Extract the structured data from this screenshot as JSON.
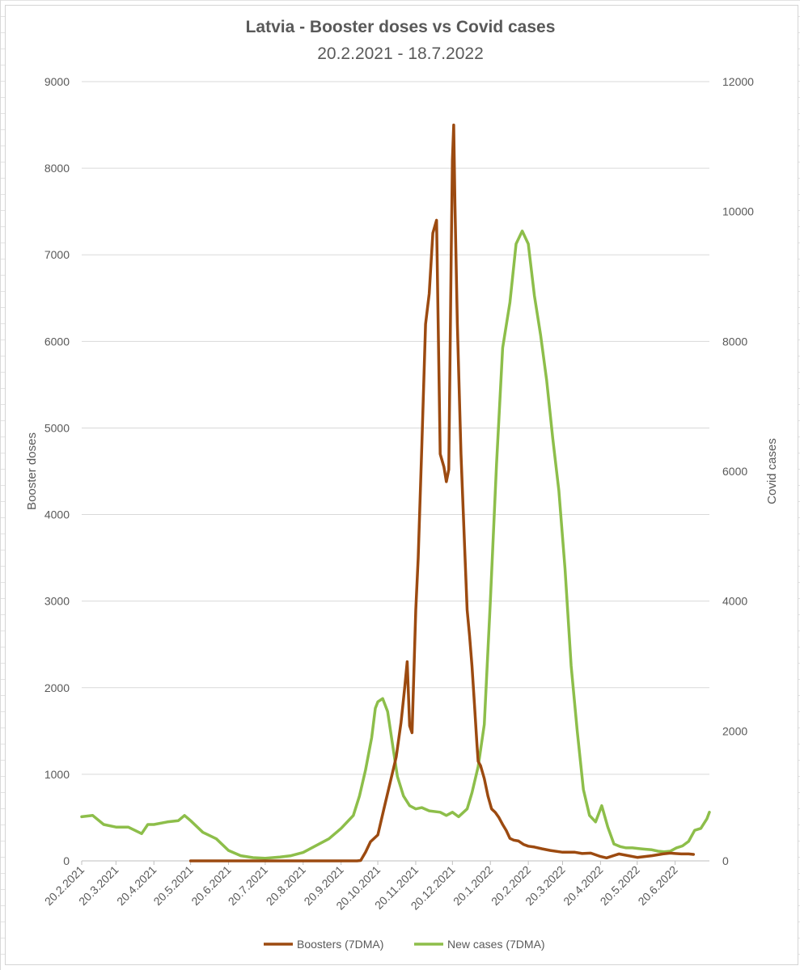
{
  "chart_data": {
    "type": "line",
    "title": "Latvia - Booster doses vs Covid cases",
    "subtitle": "20.2.2021 - 18.7.2022",
    "y_left_label": "Booster doses",
    "y_right_label": "Covid cases",
    "y_left_range": [
      0,
      9000
    ],
    "y_right_range": [
      0,
      12000
    ],
    "y_left_ticks": [
      "0",
      "1000",
      "2000",
      "3000",
      "4000",
      "5000",
      "6000",
      "7000",
      "8000",
      "9000"
    ],
    "y_right_ticks": [
      "0",
      "2000",
      "4000",
      "6000",
      "8000",
      "10000",
      "12000"
    ],
    "x_ticks": [
      "20.2.2021",
      "20.3.2021",
      "20.4.2021",
      "20.5.2021",
      "20.6.2021",
      "20.7.2021",
      "20.8.2021",
      "20.9.2021",
      "20.10.2021",
      "20.11.2021",
      "20.12.2021",
      "20.1.2022",
      "20.2.2022",
      "20.3.2022",
      "20.4.2022",
      "20.5.2022",
      "20.6.2022"
    ],
    "grid": true,
    "legend_position": "bottom",
    "series": [
      {
        "name": "Boosters (7DMA)",
        "axis": "left",
        "color": "#9C4A10",
        "x": [
          "2021-05-20",
          "2021-06-20",
          "2021-07-20",
          "2021-08-20",
          "2021-09-20",
          "2021-10-03",
          "2021-10-06",
          "2021-10-10",
          "2021-10-14",
          "2021-10-20",
          "2021-10-25",
          "2021-10-30",
          "2021-11-04",
          "2021-11-08",
          "2021-11-11",
          "2021-11-13",
          "2021-11-15",
          "2021-11-17",
          "2021-11-20",
          "2021-11-22",
          "2021-11-25",
          "2021-11-28",
          "2021-12-01",
          "2021-12-04",
          "2021-12-07",
          "2021-12-10",
          "2021-12-13",
          "2021-12-15",
          "2021-12-17",
          "2021-12-19",
          "2021-12-20",
          "2021-12-21",
          "2021-12-22",
          "2021-12-24",
          "2021-12-27",
          "2021-12-30",
          "2022-01-01",
          "2022-01-03",
          "2022-01-05",
          "2022-01-07",
          "2022-01-09",
          "2022-01-10",
          "2022-01-12",
          "2022-01-15",
          "2022-01-18",
          "2022-01-21",
          "2022-01-24",
          "2022-01-27",
          "2022-01-30",
          "2022-02-02",
          "2022-02-05",
          "2022-02-08",
          "2022-02-12",
          "2022-02-16",
          "2022-02-20",
          "2022-02-25",
          "2022-03-03",
          "2022-03-10",
          "2022-03-20",
          "2022-03-30",
          "2022-04-05",
          "2022-04-12",
          "2022-04-20",
          "2022-04-25",
          "2022-05-05",
          "2022-05-20",
          "2022-06-01",
          "2022-06-10",
          "2022-06-16",
          "2022-06-20",
          "2022-06-25",
          "2022-07-01",
          "2022-07-05"
        ],
        "y": [
          0,
          0,
          0,
          0,
          0,
          0,
          5,
          100,
          220,
          300,
          600,
          900,
          1200,
          1600,
          2000,
          2300,
          1560,
          1480,
          2900,
          3500,
          4800,
          6200,
          6550,
          7250,
          7400,
          4700,
          4550,
          4380,
          4520,
          7000,
          8100,
          8500,
          7600,
          6200,
          4700,
          3600,
          2900,
          2600,
          2250,
          1800,
          1350,
          1150,
          1100,
          950,
          750,
          600,
          560,
          500,
          420,
          350,
          260,
          240,
          230,
          190,
          170,
          160,
          140,
          120,
          100,
          100,
          85,
          90,
          50,
          35,
          80,
          40,
          60,
          80,
          90,
          85,
          80,
          80,
          75
        ]
      },
      {
        "name": "New cases (7DMA)",
        "axis": "right",
        "color": "#8DBE4A",
        "x": [
          "2021-02-20",
          "2021-03-01",
          "2021-03-10",
          "2021-03-20",
          "2021-03-30",
          "2021-04-10",
          "2021-04-15",
          "2021-04-20",
          "2021-05-01",
          "2021-05-10",
          "2021-05-15",
          "2021-05-20",
          "2021-05-30",
          "2021-06-10",
          "2021-06-20",
          "2021-06-30",
          "2021-07-10",
          "2021-07-20",
          "2021-08-01",
          "2021-08-10",
          "2021-08-20",
          "2021-09-01",
          "2021-09-10",
          "2021-09-20",
          "2021-09-30",
          "2021-10-05",
          "2021-10-10",
          "2021-10-15",
          "2021-10-18",
          "2021-10-20",
          "2021-10-24",
          "2021-10-28",
          "2021-11-01",
          "2021-11-05",
          "2021-11-10",
          "2021-11-15",
          "2021-11-20",
          "2021-11-25",
          "2021-12-01",
          "2021-12-10",
          "2021-12-15",
          "2021-12-20",
          "2021-12-25",
          "2022-01-01",
          "2022-01-05",
          "2022-01-10",
          "2022-01-15",
          "2022-01-20",
          "2022-01-25",
          "2022-01-30",
          "2022-02-05",
          "2022-02-10",
          "2022-02-15",
          "2022-02-20",
          "2022-02-25",
          "2022-03-02",
          "2022-03-07",
          "2022-03-12",
          "2022-03-17",
          "2022-03-22",
          "2022-03-27",
          "2022-04-01",
          "2022-04-06",
          "2022-04-11",
          "2022-04-16",
          "2022-04-21",
          "2022-04-26",
          "2022-05-01",
          "2022-05-06",
          "2022-05-11",
          "2022-05-16",
          "2022-05-21",
          "2022-05-26",
          "2022-06-01",
          "2022-06-06",
          "2022-06-11",
          "2022-06-16",
          "2022-06-21",
          "2022-06-26",
          "2022-07-01",
          "2022-07-06",
          "2022-07-11",
          "2022-07-16",
          "2022-07-18"
        ],
        "y": [
          680,
          700,
          560,
          520,
          520,
          420,
          560,
          560,
          600,
          620,
          700,
          620,
          440,
          340,
          160,
          80,
          50,
          40,
          60,
          80,
          130,
          250,
          340,
          500,
          700,
          1000,
          1400,
          1900,
          2350,
          2450,
          2500,
          2300,
          1800,
          1300,
          1000,
          850,
          800,
          820,
          770,
          750,
          700,
          750,
          680,
          800,
          1050,
          1450,
          2100,
          4000,
          6100,
          7900,
          8600,
          9500,
          9700,
          9500,
          8700,
          8100,
          7400,
          6500,
          5700,
          4500,
          3000,
          2000,
          1100,
          700,
          600,
          850,
          520,
          260,
          220,
          200,
          200,
          190,
          180,
          170,
          150,
          140,
          150,
          200,
          230,
          300,
          470,
          500,
          650,
          750
        ]
      }
    ]
  }
}
